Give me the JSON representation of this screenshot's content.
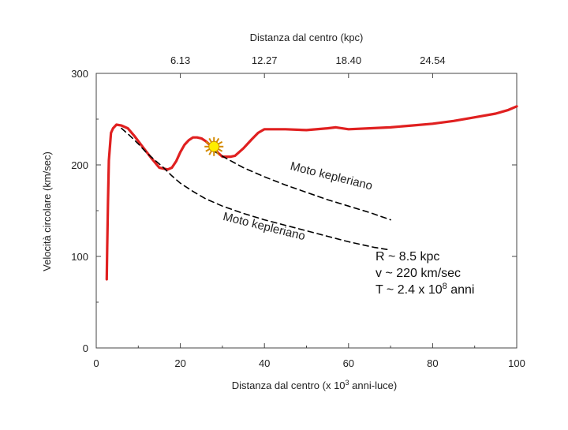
{
  "chart_data": {
    "type": "line",
    "title": "",
    "xlabel": "Distanza dal centro (x 10^3 anni-luce)",
    "xlabel_parts": {
      "before": "Distanza dal centro (x 10",
      "exp": "3",
      "after": " anni-luce)"
    },
    "ylabel": "Velocità circolare (km/sec)",
    "x2label": "Distanza dal centro (kpc)",
    "xlim": [
      0,
      100
    ],
    "ylim": [
      0,
      300
    ],
    "x_ticks": [
      0,
      20,
      40,
      60,
      80,
      100
    ],
    "y_ticks": [
      0,
      100,
      200,
      300
    ],
    "x2_ticks": [
      {
        "x": 20,
        "label": "6.13"
      },
      {
        "x": 40,
        "label": "12.27"
      },
      {
        "x": 60,
        "label": "18.40"
      },
      {
        "x": 80,
        "label": "24.54"
      }
    ],
    "grid": false,
    "series": [
      {
        "name": "",
        "color": "#e02020",
        "style": "solid",
        "x": [
          2.5,
          2.6,
          2.8,
          3.0,
          3.5,
          4.0,
          4.8,
          6.0,
          7.5,
          9.0,
          11.0,
          13.0,
          15.0,
          17.0,
          18.0,
          19.0,
          20.0,
          21.0,
          22.0,
          23.0,
          24.0,
          25.0,
          26.0,
          27.0,
          28.0,
          29.0,
          30.0,
          31.0,
          32.0,
          33.0,
          35.0,
          37.0,
          38.5,
          40.0,
          45.0,
          50.0,
          55.0,
          57.0,
          60.0,
          65.0,
          70.0,
          75.0,
          80.0,
          85.0,
          90.0,
          95.0,
          98.0,
          100.0
        ],
        "y": [
          75,
          110,
          160,
          205,
          235,
          240,
          244,
          243,
          240,
          232,
          220,
          208,
          197,
          195,
          197,
          204,
          214,
          222,
          227,
          230,
          230,
          229,
          226,
          222,
          218,
          213,
          209,
          209,
          209,
          210,
          218,
          228,
          235,
          239,
          239,
          238,
          240,
          241,
          239,
          240,
          241,
          243,
          245,
          248,
          252,
          256,
          260,
          264
        ]
      },
      {
        "name": "",
        "color": "#000000",
        "style": "dashed",
        "x": [
          6,
          8,
          10,
          12,
          14,
          16,
          18,
          20,
          23,
          26,
          30,
          35,
          40,
          45,
          50,
          55,
          60,
          66,
          70
        ],
        "y": [
          240,
          232,
          223,
          213,
          205,
          197,
          188,
          180,
          171,
          163,
          155,
          147,
          140,
          134,
          128,
          122,
          116,
          110,
          107
        ]
      },
      {
        "name": "",
        "color": "#000000",
        "style": "dashed",
        "x": [
          28,
          31,
          35,
          40,
          45,
          50,
          55,
          60,
          65,
          70
        ],
        "y": [
          215,
          207,
          197,
          187,
          178,
          170,
          162,
          155,
          148,
          140
        ]
      }
    ],
    "sun_marker": {
      "x": 28,
      "y": 220
    },
    "annotations": [
      {
        "text": "Moto kepleriano",
        "x": 46,
        "y": 195,
        "rotate": 14
      },
      {
        "text": "Moto kepleriano",
        "x": 30,
        "y": 140,
        "rotate": 14
      }
    ],
    "info_lines": [
      {
        "before": "R ~ 8.5 kpc",
        "sup": "",
        "after": ""
      },
      {
        "before": "v ~ 220 km/sec",
        "sup": "",
        "after": ""
      },
      {
        "before": "T ~ 2.4 x 10",
        "sup": "8",
        "after": " anni"
      }
    ]
  }
}
